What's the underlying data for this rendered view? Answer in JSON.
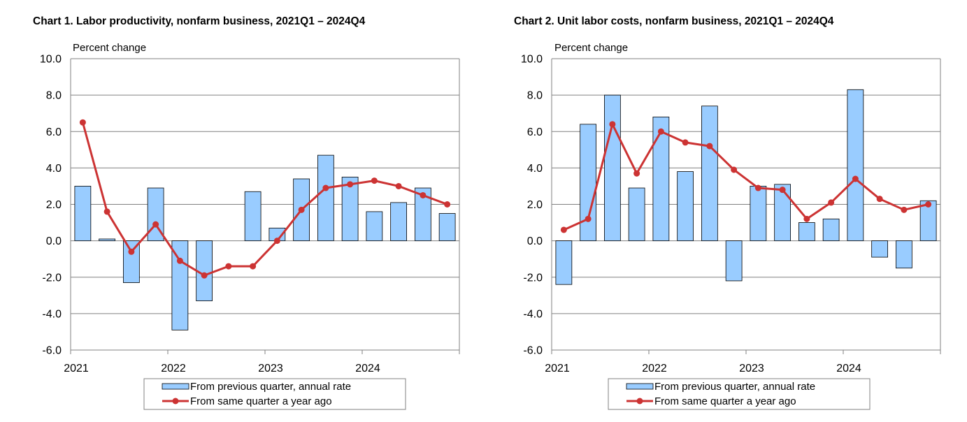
{
  "charts": [
    {
      "title": "Chart  1. Labor productivity, nonfarm business, 2021Q1 – 2024Q4",
      "ylabel": "Percent change",
      "legend": {
        "bar_label": "From previous quarter, annual rate",
        "line_label": "From same quarter a year ago"
      }
    },
    {
      "title": "Chart  2. Unit labor costs, nonfarm business, 2021Q1 – 2024Q4",
      "ylabel": "Percent change",
      "legend": {
        "bar_label": "From previous quarter, annual rate",
        "line_label": "From same quarter a year ago"
      }
    }
  ],
  "colors": {
    "bar_fill": "#99ccff",
    "bar_stroke": "#000000",
    "line": "#cc3333",
    "grid": "#808080"
  },
  "chart_data": [
    {
      "type": "bar",
      "title": "Chart  1. Labor productivity, nonfarm business, 2021Q1 – 2024Q4",
      "ylabel": "Percent change",
      "ylim": [
        -6,
        10
      ],
      "yticks": [
        "10.0",
        "8.0",
        "6.0",
        "4.0",
        "2.0",
        "0.0",
        "-2.0",
        "-4.0",
        "-6.0"
      ],
      "grid": true,
      "legend_position": "bottom",
      "year_labels": [
        "2021",
        "2022",
        "2023",
        "2024"
      ],
      "categories": [
        "2021Q1",
        "2021Q2",
        "2021Q3",
        "2021Q4",
        "2022Q1",
        "2022Q2",
        "2022Q3",
        "2022Q4",
        "2023Q1",
        "2023Q2",
        "2023Q3",
        "2023Q4",
        "2024Q1",
        "2024Q2",
        "2024Q3",
        "2024Q4"
      ],
      "series": [
        {
          "name": "From previous quarter, annual rate",
          "type": "bar",
          "values": [
            3.0,
            0.1,
            -2.3,
            2.9,
            -4.9,
            -3.3,
            0.0,
            2.7,
            0.7,
            3.4,
            4.7,
            3.5,
            1.6,
            2.1,
            2.9,
            1.5
          ]
        },
        {
          "name": "From same quarter a year ago",
          "type": "line",
          "values": [
            6.5,
            1.6,
            -0.6,
            0.9,
            -1.1,
            -1.9,
            -1.4,
            -1.4,
            0.0,
            1.7,
            2.9,
            3.1,
            3.3,
            3.0,
            2.5,
            2.0
          ]
        }
      ]
    },
    {
      "type": "bar",
      "title": "Chart  2. Unit labor costs, nonfarm business, 2021Q1 – 2024Q4",
      "ylabel": "Percent change",
      "ylim": [
        -6,
        10
      ],
      "yticks": [
        "10.0",
        "8.0",
        "6.0",
        "4.0",
        "2.0",
        "0.0",
        "-2.0",
        "-4.0",
        "-6.0"
      ],
      "grid": true,
      "legend_position": "bottom",
      "year_labels": [
        "2021",
        "2022",
        "2023",
        "2024"
      ],
      "categories": [
        "2021Q1",
        "2021Q2",
        "2021Q3",
        "2021Q4",
        "2022Q1",
        "2022Q2",
        "2022Q3",
        "2022Q4",
        "2023Q1",
        "2023Q2",
        "2023Q3",
        "2023Q4",
        "2024Q1",
        "2024Q2",
        "2024Q3",
        "2024Q4"
      ],
      "series": [
        {
          "name": "From previous quarter, annual rate",
          "type": "bar",
          "values": [
            -2.4,
            6.4,
            8.0,
            2.9,
            6.8,
            3.8,
            7.4,
            -2.2,
            3.0,
            3.1,
            1.0,
            1.2,
            8.3,
            -0.9,
            -1.5,
            2.2
          ]
        },
        {
          "name": "From same quarter a year ago",
          "type": "line",
          "values": [
            0.6,
            1.2,
            6.4,
            3.7,
            6.0,
            5.4,
            5.2,
            3.9,
            2.9,
            2.8,
            1.2,
            2.1,
            3.4,
            2.3,
            1.7,
            2.0
          ]
        }
      ]
    }
  ]
}
